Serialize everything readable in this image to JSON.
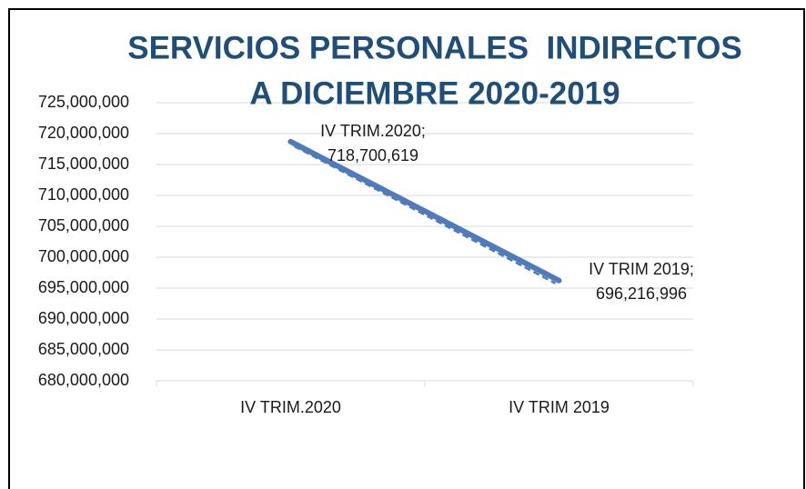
{
  "chart_data": {
    "type": "line",
    "title": [
      "SERVICIOS PERSONALES  INDIRECTOS",
      "A DICIEMBRE 2020-2019"
    ],
    "categories": [
      "IV TRIM.2020",
      "IV TRIM 2019"
    ],
    "series": [
      {
        "name": "Servicios Personales Indirectos",
        "color": "#4f7bbd",
        "values": [
          718700619,
          696216996
        ],
        "value_labels": [
          "IV TRIM.2020; 718,700,619",
          "IV TRIM 2019; 696,216,996"
        ]
      }
    ],
    "trendline": true,
    "ylim": [
      680000000,
      725000000
    ],
    "yticks": [
      {
        "value": 680000000,
        "label": "680,000,000"
      },
      {
        "value": 685000000,
        "label": "685,000,000"
      },
      {
        "value": 690000000,
        "label": "690,000,000"
      },
      {
        "value": 695000000,
        "label": "695,000,000"
      },
      {
        "value": 700000000,
        "label": "700,000,000"
      },
      {
        "value": 705000000,
        "label": "705,000,000"
      },
      {
        "value": 710000000,
        "label": "710,000,000"
      },
      {
        "value": 715000000,
        "label": "715,000,000"
      },
      {
        "value": 720000000,
        "label": "720,000,000"
      },
      {
        "value": 725000000,
        "label": "725,000,000"
      }
    ],
    "grid": true
  }
}
